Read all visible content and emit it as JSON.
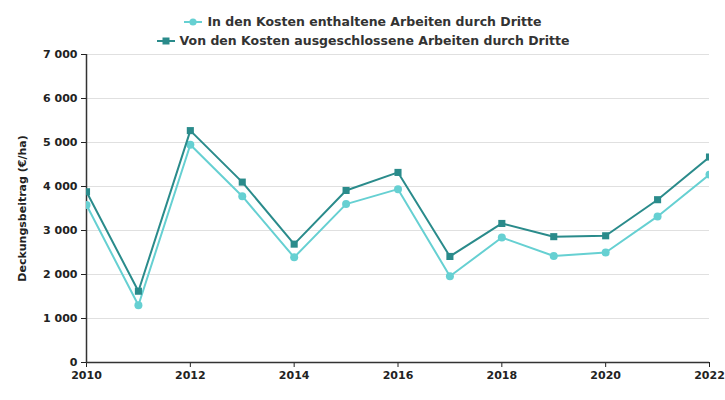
{
  "chart_data": {
    "type": "line",
    "x": [
      2010,
      2011,
      2012,
      2013,
      2014,
      2015,
      2016,
      2017,
      2018,
      2019,
      2020,
      2021,
      2022
    ],
    "series": [
      {
        "name": "In den Kosten enthaltene Arbeiten durch Dritte",
        "color": "#66d0d2",
        "marker": "circle",
        "values": [
          3580,
          1300,
          4950,
          3780,
          2390,
          3600,
          3940,
          1960,
          2840,
          2420,
          2500,
          3320,
          4270
        ]
      },
      {
        "name": "Von den Kosten ausgeschlossene Arbeiten durch Dritte",
        "color": "#2a8b8b",
        "marker": "square",
        "values": [
          3880,
          1620,
          5270,
          4100,
          2690,
          3910,
          4320,
          2410,
          3160,
          2860,
          2880,
          3700,
          4670
        ]
      }
    ],
    "y_label": "Deckungsbeitrag (€/ha)",
    "xlim": [
      2010,
      2022
    ],
    "xticks": [
      2010,
      2012,
      2014,
      2016,
      2018,
      2020,
      2022
    ],
    "ylim": [
      0,
      7000
    ],
    "yticks": [
      0,
      {
        "value": 1000,
        "label": "1 000"
      },
      {
        "value": 2000,
        "label": "2 000"
      },
      {
        "value": 3000,
        "label": "3 000"
      },
      {
        "value": 4000,
        "label": "4 000"
      },
      {
        "value": 5000,
        "label": "5 000"
      },
      {
        "value": 6000,
        "label": "6 000"
      },
      {
        "value": 7000,
        "label": "7 000"
      }
    ],
    "grid": true,
    "legend": "top"
  }
}
